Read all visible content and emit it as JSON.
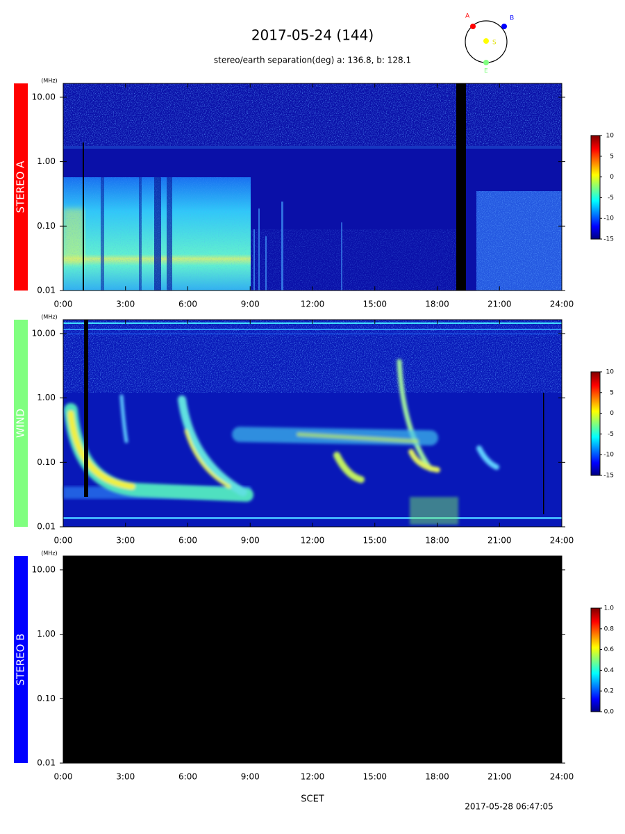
{
  "title": "2017-05-24 (144)",
  "subtitle": "stereo/earth separation(deg) a: 136.8, b: 128.1",
  "orbit_labels": [
    "A",
    "B",
    "S",
    "E"
  ],
  "xlabel": "SCET",
  "timestamp": "2017-05-28 06:47:05",
  "chart_data": [
    {
      "type": "spectrogram",
      "panel_label": "STEREO A",
      "panel_color": "#ff0000",
      "y_unit": "(MHz)",
      "log_y": true,
      "xlim": [
        0,
        24
      ],
      "xticks": [
        {
          "value": 0,
          "label": "0:00"
        },
        {
          "value": 3,
          "label": "3:00"
        },
        {
          "value": 6,
          "label": "6:00"
        },
        {
          "value": 9,
          "label": "9:00"
        },
        {
          "value": 12,
          "label": "12:00"
        },
        {
          "value": 15,
          "label": "15:00"
        },
        {
          "value": 18,
          "label": "18:00"
        },
        {
          "value": 21,
          "label": "21:00"
        },
        {
          "value": 24,
          "label": "24:00"
        }
      ],
      "ylim": [
        0.01,
        16.4
      ],
      "yticks": [
        {
          "value": 10,
          "label": "10.00"
        },
        {
          "value": 1,
          "label": "1.00"
        },
        {
          "value": 0.1,
          "label": "0.10"
        },
        {
          "value": 0.01,
          "label": "0.01"
        }
      ],
      "colorbar": {
        "lim": [
          -15,
          10
        ],
        "ticks": [
          10,
          5,
          0,
          -5,
          -10,
          -15
        ]
      }
    },
    {
      "type": "spectrogram",
      "panel_label": "WIND",
      "panel_color": "#80ff80",
      "y_unit": "(MHz)",
      "log_y": true,
      "xlim": [
        0,
        24
      ],
      "xticks": [
        {
          "value": 0,
          "label": "0:00"
        },
        {
          "value": 3,
          "label": "3:00"
        },
        {
          "value": 6,
          "label": "6:00"
        },
        {
          "value": 9,
          "label": "9:00"
        },
        {
          "value": 12,
          "label": "12:00"
        },
        {
          "value": 15,
          "label": "15:00"
        },
        {
          "value": 18,
          "label": "18:00"
        },
        {
          "value": 21,
          "label": "21:00"
        },
        {
          "value": 24,
          "label": "24:00"
        }
      ],
      "ylim": [
        0.01,
        16.4
      ],
      "yticks": [
        {
          "value": 10,
          "label": "10.00"
        },
        {
          "value": 1,
          "label": "1.00"
        },
        {
          "value": 0.1,
          "label": "0.10"
        },
        {
          "value": 0.01,
          "label": "0.01"
        }
      ],
      "colorbar": {
        "lim": [
          -15,
          10
        ],
        "ticks": [
          10,
          5,
          0,
          -5,
          -10,
          -15
        ]
      }
    },
    {
      "type": "spectrogram",
      "panel_label": "STEREO B",
      "panel_color": "#0000ff",
      "y_unit": "(MHz)",
      "log_y": true,
      "xlim": [
        0,
        24
      ],
      "xticks": [
        {
          "value": 0,
          "label": "0:00"
        },
        {
          "value": 3,
          "label": "3:00"
        },
        {
          "value": 6,
          "label": "6:00"
        },
        {
          "value": 9,
          "label": "9:00"
        },
        {
          "value": 12,
          "label": "12:00"
        },
        {
          "value": 15,
          "label": "15:00"
        },
        {
          "value": 18,
          "label": "18:00"
        },
        {
          "value": 21,
          "label": "21:00"
        },
        {
          "value": 24,
          "label": "24:00"
        }
      ],
      "ylim": [
        0.01,
        16.4
      ],
      "yticks": [
        {
          "value": 10,
          "label": "10.00"
        },
        {
          "value": 1,
          "label": "1.00"
        },
        {
          "value": 0.1,
          "label": "0.10"
        },
        {
          "value": 0.01,
          "label": "0.01"
        }
      ],
      "colorbar": {
        "lim": [
          0,
          1
        ],
        "ticks": [
          {
            "value": 1,
            "label": "1.0"
          },
          {
            "value": 0.8,
            "label": "0.8"
          },
          {
            "value": 0.6,
            "label": "0.6"
          },
          {
            "value": 0.4,
            "label": "0.4"
          },
          {
            "value": 0.2,
            "label": "0.2"
          },
          {
            "value": 0,
            "label": "0.0"
          }
        ]
      }
    }
  ]
}
